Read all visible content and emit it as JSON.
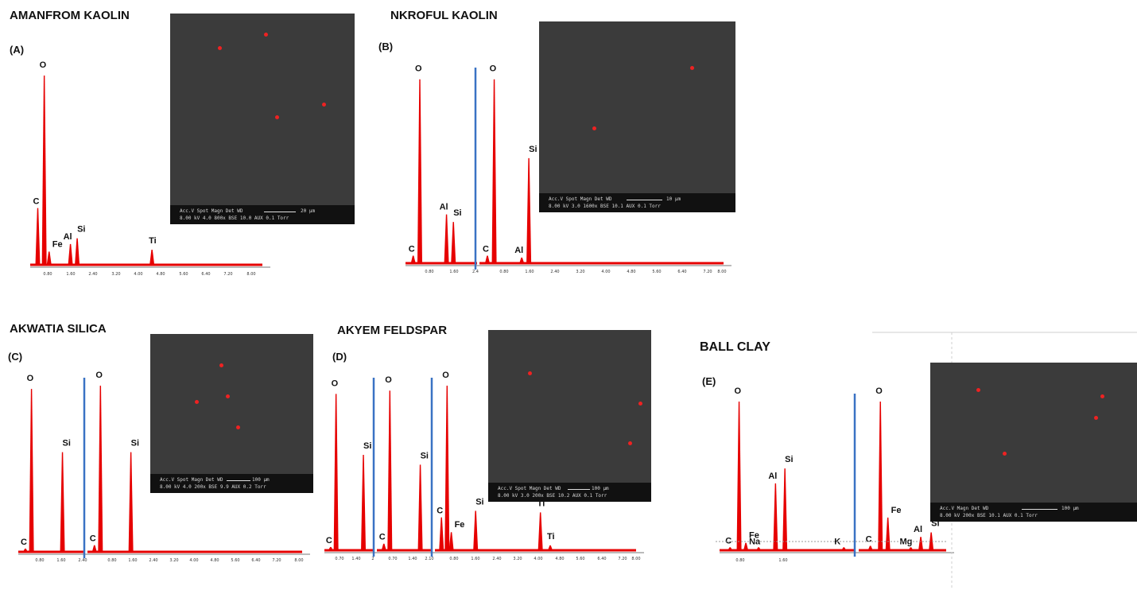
{
  "colors": {
    "peak": "#e60000",
    "divider": "#3a72c4",
    "axis": "#777777",
    "sem_bg": "#3b3b3b"
  },
  "panels": [
    {
      "id": "A",
      "title": "AMANFROM KAOLIN",
      "label": "(A)",
      "ticks": [
        "0.80",
        "1.60",
        "2.40",
        "3.20",
        "4.00",
        "4.80",
        "5.60",
        "6.40",
        "7.20",
        "8.00"
      ],
      "peaks": [
        {
          "el": "C",
          "x": 0.28,
          "h": 0.3
        },
        {
          "el": "O",
          "x": 0.52,
          "h": 1.0
        },
        {
          "el": "Fe",
          "x": 0.7,
          "h": 0.07
        },
        {
          "el": "Al",
          "x": 1.49,
          "h": 0.11
        },
        {
          "el": "Si",
          "x": 1.74,
          "h": 0.14
        },
        {
          "el": "Ti",
          "x": 4.51,
          "h": 0.08
        }
      ],
      "sem": {
        "caption1": "Acc.V   Spot  Magn   Det   WD",
        "caption2": "8.00 kV  4.0   800x   BSE  10.0   AUX  0.1 Torr",
        "scale": "20 µm"
      }
    },
    {
      "id": "B",
      "title": "NKROFUL KAOLIN",
      "label": "(B)",
      "ticks": [
        "0.80",
        "1.60",
        "2.4",
        "0.80",
        "1.60",
        "2.40",
        "3.20",
        "4.00",
        "4.80",
        "5.60",
        "6.40",
        "7.20",
        "8.00"
      ],
      "peaks": [
        {
          "el": "C",
          "x": 0.28,
          "h": 0.04
        },
        {
          "el": "O",
          "x": 0.52,
          "h": 0.98
        },
        {
          "el": "Al",
          "x": 1.49,
          "h": 0.26
        },
        {
          "el": "Si",
          "x": 1.74,
          "h": 0.22
        },
        {
          "el": "C",
          "x": 0.28,
          "h": 0.04,
          "seg": 2
        },
        {
          "el": "O",
          "x": 0.52,
          "h": 0.98,
          "seg": 2
        },
        {
          "el": "Al",
          "x": 1.49,
          "h": 0.03,
          "seg": 2
        },
        {
          "el": "Si",
          "x": 1.74,
          "h": 0.56,
          "seg": 2
        }
      ],
      "sem": {
        "caption1": "Acc.V   Spot  Magn   Det   WD",
        "caption2": "8.00 kV  3.0   1600x  BSE  10.1   AUX  0.1 Torr",
        "scale": "10 µm"
      }
    },
    {
      "id": "C",
      "title": "AKWATIA SILICA",
      "label": "(C)",
      "ticks": [
        "0.80",
        "1.60",
        "2.40",
        "0.80",
        "1.60",
        "2.40",
        "3.20",
        "4.00",
        "4.80",
        "5.60",
        "6.40",
        "7.20",
        "8.00"
      ],
      "peaks": [
        {
          "el": "C",
          "x": 0.28,
          "h": 0.02
        },
        {
          "el": "O",
          "x": 0.52,
          "h": 0.98
        },
        {
          "el": "Si",
          "x": 1.74,
          "h": 0.6
        },
        {
          "el": "C",
          "x": 0.28,
          "h": 0.04,
          "seg": 2
        },
        {
          "el": "O",
          "x": 0.52,
          "h": 1.0,
          "seg": 2
        },
        {
          "el": "Si",
          "x": 1.74,
          "h": 0.6,
          "seg": 2
        }
      ],
      "sem": {
        "caption1": "Acc.V   Spot  Magn   Det   WD",
        "caption2": "8.00 kV  4.0   200x   BSE  9.9    AUX  0.2 Torr",
        "scale": "100 µm"
      }
    },
    {
      "id": "D",
      "title": "AKYEM FELDSPAR",
      "label": "(D)",
      "ticks": [
        "0.70",
        "1.40",
        "2",
        "0.70",
        "1.40",
        "2.10",
        "0.80",
        "1.60",
        "2.40",
        "3.20",
        "4.00",
        "4.80",
        "5.60",
        "6.40",
        "7.20",
        "8.00"
      ],
      "peaks": [
        {
          "el": "C",
          "x": 0.28,
          "h": 0.02
        },
        {
          "el": "O",
          "x": 0.52,
          "h": 0.95
        },
        {
          "el": "Si",
          "x": 1.74,
          "h": 0.58
        },
        {
          "el": "C",
          "x": 0.28,
          "h": 0.04,
          "seg": 2
        },
        {
          "el": "O",
          "x": 0.52,
          "h": 0.97,
          "seg": 2
        },
        {
          "el": "Si",
          "x": 1.74,
          "h": 0.52,
          "seg": 2
        },
        {
          "el": "C",
          "x": 0.28,
          "h": 0.2,
          "seg": 3
        },
        {
          "el": "O",
          "x": 0.52,
          "h": 1.0,
          "seg": 3
        },
        {
          "el": "Fe",
          "x": 0.7,
          "h": 0.11,
          "seg": 3
        },
        {
          "el": "Si",
          "x": 1.74,
          "h": 0.24,
          "seg": 3
        },
        {
          "el": "Ti",
          "x": 4.51,
          "h": 0.23,
          "seg": 3
        },
        {
          "el": "Ti",
          "x": 4.93,
          "h": 0.03,
          "seg": 3
        }
      ],
      "sem": {
        "caption1": "Acc.V   Spot  Magn   Det   WD",
        "caption2": "8.00 kV  3.0   200x   BSE  10.2   AUX  0.1 Torr",
        "scale": "100 µm"
      }
    },
    {
      "id": "E",
      "title": "BALL CLAY",
      "label": "(E)",
      "ticks": [
        "0.80",
        "1.60"
      ],
      "peaks": [
        {
          "el": "C",
          "x": 0.28,
          "h": 0.02
        },
        {
          "el": "O",
          "x": 0.52,
          "h": 1.0
        },
        {
          "el": "Fe",
          "x": 0.7,
          "h": 0.05
        },
        {
          "el": "Na",
          "x": 1.04,
          "h": 0.02
        },
        {
          "el": "Al",
          "x": 1.49,
          "h": 0.45
        },
        {
          "el": "Si",
          "x": 1.74,
          "h": 0.55
        },
        {
          "el": "K",
          "x": 3.31,
          "h": 0.02
        },
        {
          "el": "C",
          "x": 0.28,
          "h": 0.03,
          "seg": 2
        },
        {
          "el": "O",
          "x": 0.52,
          "h": 1.0,
          "seg": 2
        },
        {
          "el": "Fe",
          "x": 0.7,
          "h": 0.22,
          "seg": 2
        },
        {
          "el": "Mg",
          "x": 1.25,
          "h": 0.02,
          "seg": 2
        },
        {
          "el": "Al",
          "x": 1.49,
          "h": 0.09,
          "seg": 2
        },
        {
          "el": "Si",
          "x": 1.74,
          "h": 0.12,
          "seg": 2
        }
      ],
      "sem": {
        "caption1": "Acc.V   Magn    Det   WD",
        "caption2": "8.00 kV  200x   BSE  10.1   AUX  0.1 Torr",
        "scale": "100 µm"
      }
    }
  ]
}
